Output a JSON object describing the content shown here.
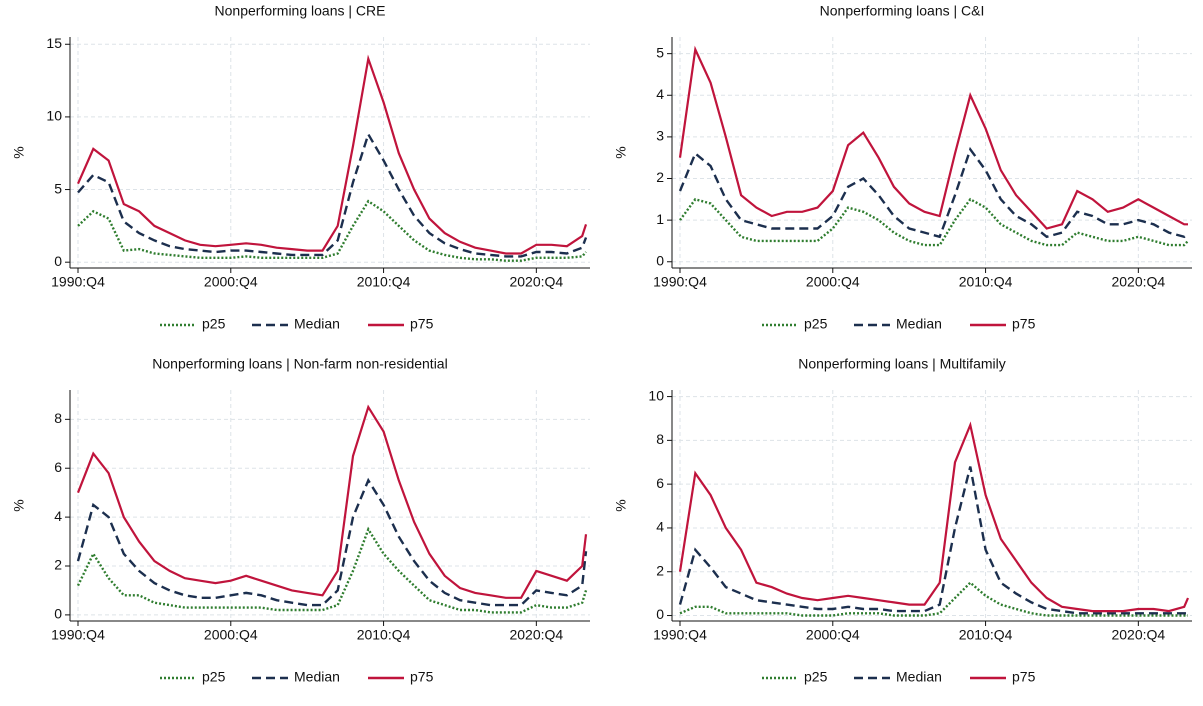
{
  "chart_data": [
    {
      "type": "line",
      "title": "Nonperforming loans | CRE",
      "y_label": "%",
      "x": [
        "1990:Q4",
        "1991:Q4",
        "1992:Q4",
        "1993:Q4",
        "1994:Q4",
        "1995:Q4",
        "1996:Q4",
        "1997:Q4",
        "1998:Q4",
        "1999:Q4",
        "2000:Q4",
        "2001:Q4",
        "2002:Q4",
        "2003:Q4",
        "2004:Q4",
        "2005:Q4",
        "2006:Q4",
        "2007:Q4",
        "2008:Q4",
        "2009:Q4",
        "2010:Q4",
        "2011:Q4",
        "2012:Q4",
        "2013:Q4",
        "2014:Q4",
        "2015:Q4",
        "2016:Q4",
        "2017:Q4",
        "2018:Q4",
        "2019:Q4",
        "2020:Q4",
        "2021:Q4",
        "2022:Q4",
        "2023:Q4",
        "2024:Q1"
      ],
      "xticks": [
        "1990:Q4",
        "2000:Q4",
        "2010:Q4",
        "2020:Q4"
      ],
      "ylim": [
        -0.4,
        15.5
      ],
      "yticks": [
        0,
        5,
        10,
        15
      ],
      "grid": true,
      "series": [
        {
          "name": "p25",
          "color": "#2f7d2f",
          "style": "dotted",
          "values": [
            2.5,
            3.5,
            3.0,
            0.8,
            0.9,
            0.6,
            0.5,
            0.4,
            0.3,
            0.3,
            0.3,
            0.4,
            0.3,
            0.3,
            0.3,
            0.3,
            0.3,
            0.6,
            2.5,
            4.2,
            3.5,
            2.5,
            1.5,
            0.8,
            0.5,
            0.3,
            0.2,
            0.2,
            0.1,
            0.1,
            0.3,
            0.3,
            0.3,
            0.4,
            0.7
          ]
        },
        {
          "name": "Median",
          "color": "#1c2f4e",
          "style": "dashed",
          "values": [
            4.8,
            6.0,
            5.5,
            2.8,
            2.0,
            1.5,
            1.1,
            0.9,
            0.8,
            0.7,
            0.8,
            0.8,
            0.7,
            0.6,
            0.5,
            0.5,
            0.5,
            1.5,
            5.5,
            8.8,
            7.0,
            5.0,
            3.2,
            2.0,
            1.3,
            0.9,
            0.6,
            0.5,
            0.4,
            0.4,
            0.7,
            0.7,
            0.6,
            1.0,
            1.7
          ]
        },
        {
          "name": "p75",
          "color": "#c0143c",
          "style": "solid",
          "values": [
            5.4,
            7.8,
            7.0,
            4.0,
            3.5,
            2.5,
            2.0,
            1.5,
            1.2,
            1.1,
            1.2,
            1.3,
            1.2,
            1.0,
            0.9,
            0.8,
            0.8,
            2.5,
            8.0,
            14.0,
            11.0,
            7.5,
            5.0,
            3.0,
            2.0,
            1.4,
            1.0,
            0.8,
            0.6,
            0.6,
            1.2,
            1.2,
            1.1,
            1.8,
            2.6
          ]
        }
      ]
    },
    {
      "type": "line",
      "title": "Nonperforming loans | C&I",
      "y_label": "%",
      "x": [
        "1990:Q4",
        "1991:Q4",
        "1992:Q4",
        "1993:Q4",
        "1994:Q4",
        "1995:Q4",
        "1996:Q4",
        "1997:Q4",
        "1998:Q4",
        "1999:Q4",
        "2000:Q4",
        "2001:Q4",
        "2002:Q4",
        "2003:Q4",
        "2004:Q4",
        "2005:Q4",
        "2006:Q4",
        "2007:Q4",
        "2008:Q4",
        "2009:Q4",
        "2010:Q4",
        "2011:Q4",
        "2012:Q4",
        "2013:Q4",
        "2014:Q4",
        "2015:Q4",
        "2016:Q4",
        "2017:Q4",
        "2018:Q4",
        "2019:Q4",
        "2020:Q4",
        "2021:Q4",
        "2022:Q4",
        "2023:Q4",
        "2024:Q1"
      ],
      "xticks": [
        "1990:Q4",
        "2000:Q4",
        "2010:Q4",
        "2020:Q4"
      ],
      "ylim": [
        -0.15,
        5.4
      ],
      "yticks": [
        0,
        1,
        2,
        3,
        4,
        5
      ],
      "grid": true,
      "series": [
        {
          "name": "p25",
          "color": "#2f7d2f",
          "style": "dotted",
          "values": [
            1.0,
            1.5,
            1.4,
            1.0,
            0.6,
            0.5,
            0.5,
            0.5,
            0.5,
            0.5,
            0.8,
            1.3,
            1.2,
            1.0,
            0.7,
            0.5,
            0.4,
            0.4,
            1.0,
            1.5,
            1.3,
            0.9,
            0.7,
            0.5,
            0.4,
            0.4,
            0.7,
            0.6,
            0.5,
            0.5,
            0.6,
            0.5,
            0.4,
            0.4,
            0.5
          ]
        },
        {
          "name": "Median",
          "color": "#1c2f4e",
          "style": "dashed",
          "values": [
            1.7,
            2.6,
            2.3,
            1.5,
            1.0,
            0.9,
            0.8,
            0.8,
            0.8,
            0.8,
            1.1,
            1.8,
            2.0,
            1.6,
            1.1,
            0.8,
            0.7,
            0.6,
            1.6,
            2.7,
            2.2,
            1.5,
            1.1,
            0.9,
            0.6,
            0.7,
            1.2,
            1.1,
            0.9,
            0.9,
            1.0,
            0.9,
            0.7,
            0.6,
            0.7
          ]
        },
        {
          "name": "p75",
          "color": "#c0143c",
          "style": "solid",
          "values": [
            2.5,
            5.1,
            4.3,
            3.0,
            1.6,
            1.3,
            1.1,
            1.2,
            1.2,
            1.3,
            1.7,
            2.8,
            3.1,
            2.5,
            1.8,
            1.4,
            1.2,
            1.1,
            2.6,
            4.0,
            3.2,
            2.2,
            1.6,
            1.2,
            0.8,
            0.9,
            1.7,
            1.5,
            1.2,
            1.3,
            1.5,
            1.3,
            1.1,
            0.9,
            0.9
          ]
        }
      ]
    },
    {
      "type": "line",
      "title": "Nonperforming loans | Non-farm non-residential",
      "y_label": "%",
      "x": [
        "1990:Q4",
        "1991:Q4",
        "1992:Q4",
        "1993:Q4",
        "1994:Q4",
        "1995:Q4",
        "1996:Q4",
        "1997:Q4",
        "1998:Q4",
        "1999:Q4",
        "2000:Q4",
        "2001:Q4",
        "2002:Q4",
        "2003:Q4",
        "2004:Q4",
        "2005:Q4",
        "2006:Q4",
        "2007:Q4",
        "2008:Q4",
        "2009:Q4",
        "2010:Q4",
        "2011:Q4",
        "2012:Q4",
        "2013:Q4",
        "2014:Q4",
        "2015:Q4",
        "2016:Q4",
        "2017:Q4",
        "2018:Q4",
        "2019:Q4",
        "2020:Q4",
        "2021:Q4",
        "2022:Q4",
        "2023:Q4",
        "2024:Q1"
      ],
      "xticks": [
        "1990:Q4",
        "2000:Q4",
        "2010:Q4",
        "2020:Q4"
      ],
      "ylim": [
        -0.25,
        9.2
      ],
      "yticks": [
        0,
        2,
        4,
        6,
        8
      ],
      "grid": true,
      "series": [
        {
          "name": "p25",
          "color": "#2f7d2f",
          "style": "dotted",
          "values": [
            1.2,
            2.5,
            1.5,
            0.8,
            0.8,
            0.5,
            0.4,
            0.3,
            0.3,
            0.3,
            0.3,
            0.3,
            0.3,
            0.2,
            0.2,
            0.2,
            0.2,
            0.4,
            1.8,
            3.5,
            2.5,
            1.8,
            1.2,
            0.6,
            0.4,
            0.2,
            0.2,
            0.1,
            0.1,
            0.1,
            0.4,
            0.3,
            0.3,
            0.5,
            1.0
          ]
        },
        {
          "name": "Median",
          "color": "#1c2f4e",
          "style": "dashed",
          "values": [
            2.2,
            4.5,
            4.0,
            2.5,
            1.8,
            1.3,
            1.0,
            0.8,
            0.7,
            0.7,
            0.8,
            0.9,
            0.8,
            0.6,
            0.5,
            0.4,
            0.4,
            1.0,
            4.0,
            5.5,
            4.5,
            3.2,
            2.2,
            1.4,
            0.9,
            0.6,
            0.5,
            0.4,
            0.4,
            0.4,
            1.0,
            0.9,
            0.8,
            1.2,
            2.6
          ]
        },
        {
          "name": "p75",
          "color": "#c0143c",
          "style": "solid",
          "values": [
            5.0,
            6.6,
            5.8,
            4.0,
            3.0,
            2.2,
            1.8,
            1.5,
            1.4,
            1.3,
            1.4,
            1.6,
            1.4,
            1.2,
            1.0,
            0.9,
            0.8,
            1.8,
            6.5,
            8.5,
            7.5,
            5.5,
            3.8,
            2.5,
            1.6,
            1.1,
            0.9,
            0.8,
            0.7,
            0.7,
            1.8,
            1.6,
            1.4,
            2.0,
            3.3
          ]
        }
      ]
    },
    {
      "type": "line",
      "title": "Nonperforming loans | Multifamily",
      "y_label": "%",
      "x": [
        "1990:Q4",
        "1991:Q4",
        "1992:Q4",
        "1993:Q4",
        "1994:Q4",
        "1995:Q4",
        "1996:Q4",
        "1997:Q4",
        "1998:Q4",
        "1999:Q4",
        "2000:Q4",
        "2001:Q4",
        "2002:Q4",
        "2003:Q4",
        "2004:Q4",
        "2005:Q4",
        "2006:Q4",
        "2007:Q4",
        "2008:Q4",
        "2009:Q4",
        "2010:Q4",
        "2011:Q4",
        "2012:Q4",
        "2013:Q4",
        "2014:Q4",
        "2015:Q4",
        "2016:Q4",
        "2017:Q4",
        "2018:Q4",
        "2019:Q4",
        "2020:Q4",
        "2021:Q4",
        "2022:Q4",
        "2023:Q4",
        "2024:Q1"
      ],
      "xticks": [
        "1990:Q4",
        "2000:Q4",
        "2010:Q4",
        "2020:Q4"
      ],
      "ylim": [
        -0.25,
        10.3
      ],
      "yticks": [
        0,
        2,
        4,
        6,
        8,
        10
      ],
      "grid": true,
      "series": [
        {
          "name": "p25",
          "color": "#2f7d2f",
          "style": "dotted",
          "values": [
            0.1,
            0.4,
            0.4,
            0.1,
            0.1,
            0.1,
            0.1,
            0.1,
            0.0,
            0.0,
            0.0,
            0.1,
            0.1,
            0.1,
            0.0,
            0.0,
            0.0,
            0.1,
            0.8,
            1.5,
            0.9,
            0.5,
            0.3,
            0.1,
            0.0,
            0.0,
            0.0,
            0.0,
            0.0,
            0.0,
            0.0,
            0.0,
            0.0,
            0.0,
            0.0
          ]
        },
        {
          "name": "Median",
          "color": "#1c2f4e",
          "style": "dashed",
          "values": [
            0.5,
            3.0,
            2.2,
            1.3,
            1.0,
            0.7,
            0.6,
            0.5,
            0.4,
            0.3,
            0.3,
            0.4,
            0.3,
            0.3,
            0.2,
            0.2,
            0.2,
            0.5,
            4.0,
            6.8,
            3.0,
            1.5,
            1.0,
            0.6,
            0.3,
            0.2,
            0.1,
            0.1,
            0.1,
            0.1,
            0.1,
            0.1,
            0.1,
            0.1,
            0.1
          ]
        },
        {
          "name": "p75",
          "color": "#c0143c",
          "style": "solid",
          "values": [
            2.0,
            6.5,
            5.5,
            4.0,
            3.0,
            1.5,
            1.3,
            1.0,
            0.8,
            0.7,
            0.8,
            0.9,
            0.8,
            0.7,
            0.6,
            0.5,
            0.5,
            1.5,
            7.0,
            8.7,
            5.5,
            3.5,
            2.5,
            1.5,
            0.8,
            0.4,
            0.3,
            0.2,
            0.2,
            0.2,
            0.3,
            0.3,
            0.2,
            0.4,
            0.8
          ]
        }
      ]
    }
  ]
}
